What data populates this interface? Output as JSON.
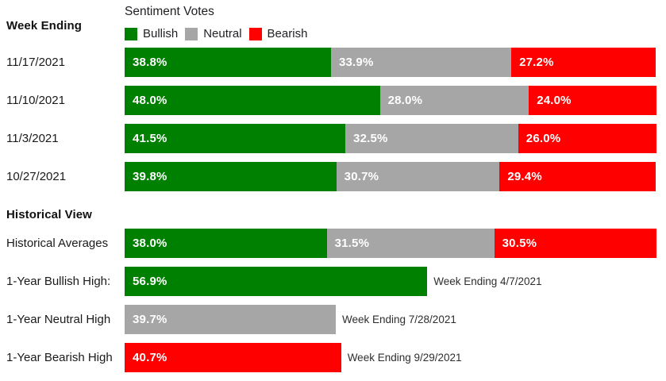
{
  "header": {
    "week_ending_label": "Week Ending",
    "chart_title": "Sentiment Votes"
  },
  "colors": {
    "Bullish": "#008000",
    "Neutral": "#a6a6a6",
    "Bearish": "#fe0000"
  },
  "legend": [
    {
      "label": "Bullish"
    },
    {
      "label": "Neutral"
    },
    {
      "label": "Bearish"
    }
  ],
  "chart_data": {
    "type": "bar",
    "stacked": true,
    "orientation": "horizontal",
    "unit": "%",
    "xlim": [
      0,
      100
    ],
    "series_names": [
      "Bullish",
      "Neutral",
      "Bearish"
    ],
    "weekly_rows": [
      {
        "label": "11/17/2021",
        "segments": [
          {
            "series": "Bullish",
            "value": 38.8
          },
          {
            "series": "Neutral",
            "value": 33.9
          },
          {
            "series": "Bearish",
            "value": 27.2
          }
        ]
      },
      {
        "label": "11/10/2021",
        "segments": [
          {
            "series": "Bullish",
            "value": 48.0
          },
          {
            "series": "Neutral",
            "value": 28.0
          },
          {
            "series": "Bearish",
            "value": 24.0
          }
        ]
      },
      {
        "label": "11/3/2021",
        "segments": [
          {
            "series": "Bullish",
            "value": 41.5
          },
          {
            "series": "Neutral",
            "value": 32.5
          },
          {
            "series": "Bearish",
            "value": 26.0
          }
        ]
      },
      {
        "label": "10/27/2021",
        "segments": [
          {
            "series": "Bullish",
            "value": 39.8
          },
          {
            "series": "Neutral",
            "value": 30.7
          },
          {
            "series": "Bearish",
            "value": 29.4
          }
        ]
      }
    ],
    "historical_section_title": "Historical View",
    "historical_rows": [
      {
        "label": "Historical Averages",
        "annotation": "",
        "segments": [
          {
            "series": "Bullish",
            "value": 38.0
          },
          {
            "series": "Neutral",
            "value": 31.5
          },
          {
            "series": "Bearish",
            "value": 30.5
          }
        ]
      },
      {
        "label": "1-Year Bullish High:",
        "annotation": "Week Ending 4/7/2021",
        "segments": [
          {
            "series": "Bullish",
            "value": 56.9
          }
        ]
      },
      {
        "label": "1-Year Neutral High",
        "annotation": "Week Ending 7/28/2021",
        "segments": [
          {
            "series": "Neutral",
            "value": 39.7
          }
        ]
      },
      {
        "label": "1-Year Bearish High",
        "annotation": "Week Ending 9/29/2021",
        "segments": [
          {
            "series": "Bearish",
            "value": 40.7
          }
        ]
      }
    ]
  }
}
